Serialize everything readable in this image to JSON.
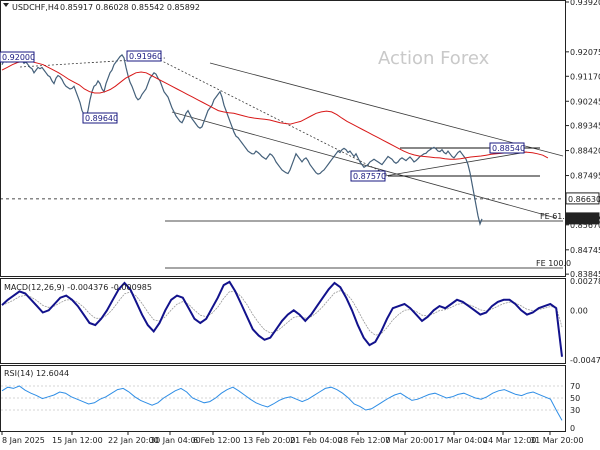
{
  "header": {
    "symbol": "USDCHF,H4",
    "ohlc": "0.85917 0.86028 0.85542 0.85892"
  },
  "watermark": "Action Forex",
  "colors": {
    "price": "#44607a",
    "ma": "#d81818",
    "channel": "#3a3a3a",
    "macd": "#12128c",
    "signal": "#9a9a9a",
    "rsi": "#2f8ee6",
    "box": "#1a1a80",
    "grid": "#cfcfcf"
  },
  "chart_data": [
    {
      "type": "line",
      "panel": "price",
      "y_ticks": [
        "0.93920",
        "0.92075",
        "0.91170",
        "0.90245",
        "0.89345",
        "0.88420",
        "0.87495",
        "0.86630",
        "0.85670",
        "0.84745",
        "0.83845"
      ],
      "ylim": [
        0.8385,
        0.9392
      ],
      "x_ticks": [
        "8 Jan 2025",
        "15 Jan 12:00",
        "22 Jan 20:00",
        "30 Jan 04:00",
        "6 Feb 12:00",
        "13 Feb 20:00",
        "21 Feb 04:00",
        "28 Feb 12:00",
        "7 Mar 20:00",
        "17 Mar 04:00",
        "24 Mar 12:00",
        "31 Mar 20:00"
      ],
      "price_x": [
        0,
        2,
        4,
        6,
        8,
        10,
        12,
        14,
        16,
        18,
        20,
        22,
        24,
        26,
        28,
        30,
        32,
        34,
        36,
        38,
        40,
        42,
        44,
        46,
        48,
        50,
        52,
        54,
        56,
        58,
        60,
        62,
        64,
        66,
        68,
        70,
        72,
        74,
        76,
        78,
        80,
        82,
        84,
        86,
        88,
        90,
        92,
        94,
        96,
        98,
        100,
        102,
        104,
        106,
        108,
        110,
        112,
        114,
        116,
        118,
        120,
        122,
        124,
        126,
        128,
        130,
        132,
        134,
        136,
        138,
        140,
        142,
        144,
        146,
        148,
        150,
        152,
        154,
        156,
        158,
        160,
        162,
        164,
        166,
        168,
        170,
        172,
        174,
        176,
        178,
        180,
        182,
        184,
        186,
        188,
        190,
        192,
        194,
        196,
        198,
        200,
        202,
        204,
        206,
        208,
        210,
        212,
        214,
        216,
        218,
        220,
        222,
        224,
        226,
        228,
        230,
        232,
        234,
        236,
        238,
        240,
        242,
        244,
        246,
        248,
        250,
        252,
        254,
        256,
        258,
        260,
        262,
        264,
        266,
        268,
        270,
        272,
        274,
        276,
        278,
        280,
        282,
        284,
        286,
        288,
        290,
        292,
        294,
        296,
        298,
        300,
        302,
        304,
        306,
        308,
        310,
        312,
        314,
        316,
        318,
        320,
        322,
        324,
        326,
        328,
        330,
        332,
        334,
        336,
        338,
        340,
        342,
        344,
        346,
        348,
        350,
        352,
        354,
        356,
        358,
        360,
        362,
        364,
        366,
        368,
        370,
        372,
        374,
        376,
        378,
        380,
        382,
        384,
        386,
        388,
        390,
        392,
        394,
        396,
        398,
        400,
        402,
        404,
        406,
        408,
        410,
        412,
        414,
        416,
        418,
        420,
        422,
        424,
        426,
        428,
        430,
        432,
        434,
        436,
        438,
        440,
        442,
        444,
        446,
        448,
        450,
        452,
        454,
        456,
        458,
        460,
        462,
        464,
        466,
        468,
        470,
        472,
        474,
        476,
        478,
        480,
        482,
        484,
        486,
        488,
        490,
        492,
        494,
        496,
        498,
        500,
        502,
        504,
        506,
        508,
        510,
        512,
        514,
        516,
        518,
        520,
        522,
        524,
        526,
        528,
        530,
        532,
        534,
        536,
        538,
        540,
        542,
        544,
        546,
        548,
        550,
        552,
        554,
        556
      ],
      "price_y": [
        0.916,
        0.9175,
        0.917,
        0.9185,
        0.919,
        0.92,
        0.9195,
        0.9185,
        0.918,
        0.9188,
        0.9175,
        0.9165,
        0.917,
        0.916,
        0.915,
        0.9145,
        0.913,
        0.914,
        0.915,
        0.9145,
        0.915,
        0.914,
        0.913,
        0.912,
        0.9115,
        0.91,
        0.909,
        0.911,
        0.912,
        0.9115,
        0.9105,
        0.909,
        0.908,
        0.9075,
        0.907,
        0.9072,
        0.908,
        0.906,
        0.904,
        0.902,
        0.899,
        0.8975,
        0.8964,
        0.899,
        0.903,
        0.906,
        0.908,
        0.9085,
        0.91,
        0.909,
        0.907,
        0.906,
        0.909,
        0.911,
        0.913,
        0.914,
        0.916,
        0.917,
        0.918,
        0.919,
        0.9196,
        0.9185,
        0.915,
        0.912,
        0.9095,
        0.908,
        0.906,
        0.904,
        0.903,
        0.9035,
        0.905,
        0.906,
        0.907,
        0.909,
        0.911,
        0.912,
        0.913,
        0.9125,
        0.911,
        0.91,
        0.908,
        0.906,
        0.905,
        0.904,
        0.902,
        0.9,
        0.8985,
        0.897,
        0.896,
        0.895,
        0.8945,
        0.896,
        0.898,
        0.899,
        0.8975,
        0.896,
        0.895,
        0.894,
        0.893,
        0.8925,
        0.893,
        0.895,
        0.897,
        0.899,
        0.9,
        0.901,
        0.903,
        0.904,
        0.905,
        0.906,
        0.904,
        0.901,
        0.899,
        0.897,
        0.895,
        0.893,
        0.891,
        0.8895,
        0.889,
        0.888,
        0.887,
        0.886,
        0.885,
        0.884,
        0.8835,
        0.883,
        0.883,
        0.884,
        0.8835,
        0.8828,
        0.882,
        0.8815,
        0.881,
        0.882,
        0.883,
        0.8825,
        0.8815,
        0.88,
        0.879,
        0.878,
        0.877,
        0.8765,
        0.876,
        0.8757,
        0.877,
        0.879,
        0.881,
        0.883,
        0.882,
        0.881,
        0.88,
        0.881,
        0.8815,
        0.8805,
        0.879,
        0.878,
        0.877,
        0.876,
        0.8755,
        0.8757,
        0.8765,
        0.877,
        0.878,
        0.879,
        0.88,
        0.881,
        0.882,
        0.883,
        0.884,
        0.8835,
        0.8845,
        0.885,
        0.8845,
        0.8835,
        0.884,
        0.883,
        0.882,
        0.883,
        0.8815,
        0.88,
        0.879,
        0.878,
        0.8785,
        0.879,
        0.88,
        0.8805,
        0.881,
        0.8805,
        0.88,
        0.8795,
        0.879,
        0.88,
        0.881,
        0.882,
        0.8815,
        0.881,
        0.88,
        0.8795,
        0.88,
        0.881,
        0.8815,
        0.881,
        0.8805,
        0.8812,
        0.8818,
        0.881,
        0.88,
        0.8805,
        0.8812,
        0.882,
        0.8825,
        0.883,
        0.8832,
        0.884,
        0.8845,
        0.885,
        0.8854,
        0.8848,
        0.884,
        0.8838,
        0.8845,
        0.8835,
        0.883,
        0.884,
        0.883,
        0.882,
        0.8815,
        0.8825,
        0.8835,
        0.884,
        0.883,
        0.882,
        0.881,
        0.879,
        0.876,
        0.872,
        0.868,
        0.864,
        0.86,
        0.857,
        0.8589
      ],
      "ma_y": [
        0.914,
        0.915,
        0.916,
        0.9168,
        0.9172,
        0.9175,
        0.917,
        0.9165,
        0.916,
        0.915,
        0.914,
        0.913,
        0.9118,
        0.9105,
        0.9095,
        0.9085,
        0.907,
        0.906,
        0.9055,
        0.9055,
        0.906,
        0.9068,
        0.908,
        0.9095,
        0.911,
        0.912,
        0.913,
        0.9133,
        0.913,
        0.912,
        0.911,
        0.91,
        0.909,
        0.908,
        0.907,
        0.906,
        0.905,
        0.904,
        0.903,
        0.902,
        0.901,
        0.9,
        0.899,
        0.8985,
        0.8982,
        0.898,
        0.8975,
        0.897,
        0.8965,
        0.8962,
        0.896,
        0.8958,
        0.8955,
        0.895,
        0.8945,
        0.8942,
        0.894,
        0.8945,
        0.895,
        0.896,
        0.897,
        0.898,
        0.8985,
        0.8988,
        0.8985,
        0.8975,
        0.8962,
        0.895,
        0.894,
        0.893,
        0.892,
        0.891,
        0.89,
        0.889,
        0.888,
        0.887,
        0.886,
        0.885,
        0.884,
        0.8832,
        0.8826,
        0.8822,
        0.882,
        0.8818,
        0.8816,
        0.8815,
        0.8812,
        0.881,
        0.881,
        0.8812,
        0.8815,
        0.8818,
        0.882,
        0.8822,
        0.8825,
        0.8828,
        0.883,
        0.8832,
        0.8834,
        0.8835,
        0.8836,
        0.8837,
        0.8836,
        0.8834,
        0.883,
        0.8825,
        0.8815
      ],
      "ma_x_start": 0,
      "ma_x_step": 5.15,
      "annotations": [
        {
          "label": "0.92000",
          "x": 0.92,
          "kind": "box"
        },
        {
          "label": "0.91960",
          "x": 0.9196,
          "kind": "box"
        },
        {
          "label": "0.89640",
          "x": 0.8964,
          "kind": "box"
        },
        {
          "label": "0.87570",
          "x": 0.8757,
          "kind": "box"
        },
        {
          "label": "0.88540",
          "x": 0.8854,
          "kind": "box"
        }
      ],
      "fib_labels": [
        "FE 61.8",
        "FE 100.0"
      ],
      "levels": [
        0.8663,
        0.8589
      ],
      "level_labels": [
        "0.86630",
        "0.85892"
      ],
      "current_price": "0.85892"
    },
    {
      "type": "line",
      "panel": "macd",
      "label": "MACD(12,26,9) -0.004376 -0.000985",
      "y_ticks": [
        "0.002788",
        "0.00",
        "-0.004717"
      ],
      "ylim": [
        -0.004717,
        0.002788
      ],
      "series": [
        {
          "name": "MACD",
          "values": [
            0.0005,
            0.001,
            0.0014,
            0.0018,
            0.0016,
            0.001,
            0.0004,
            -0.0002,
            0.0,
            0.0006,
            0.0012,
            0.0014,
            0.001,
            0.0004,
            -0.0004,
            -0.0012,
            -0.0014,
            -0.0008,
            0.0,
            0.001,
            0.002,
            0.0026,
            0.002,
            0.0008,
            -0.0004,
            -0.0014,
            -0.002,
            -0.0012,
            0.0,
            0.001,
            0.0014,
            0.0012,
            0.0002,
            -0.0008,
            -0.0012,
            -0.0008,
            0.0002,
            0.0012,
            0.0024,
            0.0027,
            0.0018,
            0.0006,
            -0.0006,
            -0.0018,
            -0.0024,
            -0.0028,
            -0.0026,
            -0.0018,
            -0.001,
            -0.0004,
            0.0,
            -0.0004,
            -0.001,
            -0.0004,
            0.0004,
            0.0012,
            0.002,
            0.0026,
            0.0022,
            0.0012,
            0.0,
            -0.0014,
            -0.0026,
            -0.0033,
            -0.003,
            -0.002,
            -0.0008,
            0.0002,
            0.0004,
            0.0006,
            0.0002,
            -0.0004,
            -0.001,
            -0.0006,
            0.0,
            0.0004,
            0.0002,
            0.0006,
            0.001,
            0.0008,
            0.0004,
            0.0,
            -0.0004,
            -0.0002,
            0.0004,
            0.0008,
            0.001,
            0.001,
            0.0006,
            0.0,
            -0.0004,
            -0.0002,
            0.0002,
            0.0004,
            0.0006,
            0.0002,
            -0.0044
          ]
        }
      ]
    },
    {
      "type": "line",
      "panel": "rsi",
      "label": "RSI(14) 12.6044",
      "y_ticks": [
        "70",
        "50",
        "30",
        "0"
      ],
      "ylim": [
        0,
        100
      ],
      "series": [
        {
          "name": "RSI",
          "values": [
            62,
            68,
            66,
            70,
            63,
            58,
            54,
            49,
            52,
            55,
            60,
            58,
            52,
            48,
            44,
            40,
            42,
            48,
            52,
            58,
            64,
            66,
            60,
            52,
            46,
            42,
            38,
            42,
            50,
            56,
            62,
            66,
            60,
            50,
            46,
            42,
            44,
            50,
            58,
            64,
            68,
            62,
            55,
            48,
            42,
            38,
            35,
            40,
            46,
            50,
            52,
            48,
            44,
            48,
            54,
            60,
            66,
            68,
            64,
            58,
            50,
            40,
            36,
            30,
            32,
            38,
            44,
            50,
            55,
            58,
            52,
            46,
            48,
            52,
            56,
            58,
            54,
            50,
            52,
            56,
            58,
            54,
            50,
            48,
            52,
            58,
            62,
            64,
            60,
            56,
            54,
            58,
            60,
            56,
            52,
            48,
            30,
            12.6
          ]
        }
      ]
    }
  ]
}
